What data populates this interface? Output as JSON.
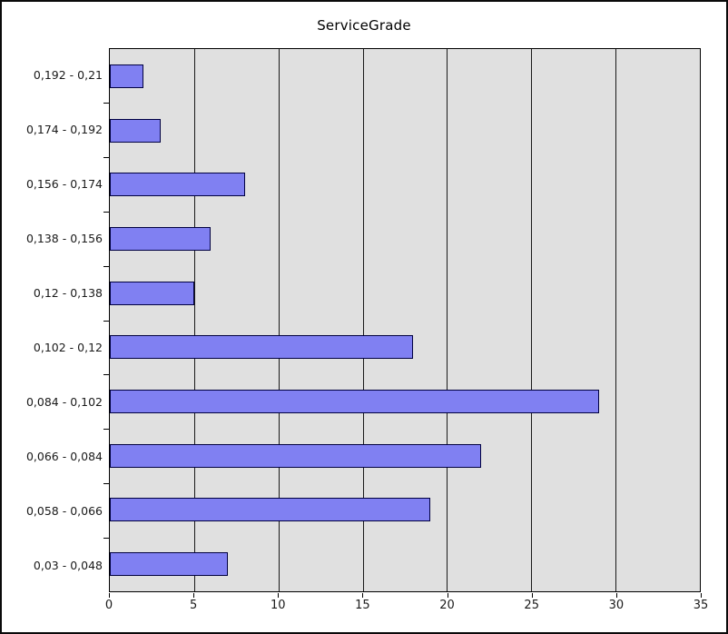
{
  "window": {
    "title": "ServiceGrade"
  },
  "colors": {
    "frame": "#0a0a0a",
    "text": "#1a1a1a",
    "plot_bg": "#e0e0e0",
    "grid_line": "#1a1a1a",
    "bar_fill": "#8080f2",
    "bar_border": "#000040"
  },
  "chart_data": {
    "type": "bar",
    "orientation": "horizontal",
    "title": "ServiceGrade",
    "categories": [
      "0,192 - 0,21",
      "0,174 - 0,192",
      "0,156 - 0,174",
      "0,138 - 0,156",
      "0,12 - 0,138",
      "0,102 - 0,12",
      "0,084 - 0,102",
      "0,066 - 0,084",
      "0,058 - 0,066",
      "0,03 - 0,048"
    ],
    "values": [
      2,
      3,
      8,
      6,
      5,
      18,
      29,
      22,
      19,
      7
    ],
    "xlabel": "",
    "ylabel": "",
    "xlim": [
      0,
      35
    ],
    "x_ticks": [
      0,
      5,
      10,
      15,
      20,
      25,
      30,
      35
    ],
    "grid": true,
    "legend_position": "none"
  }
}
